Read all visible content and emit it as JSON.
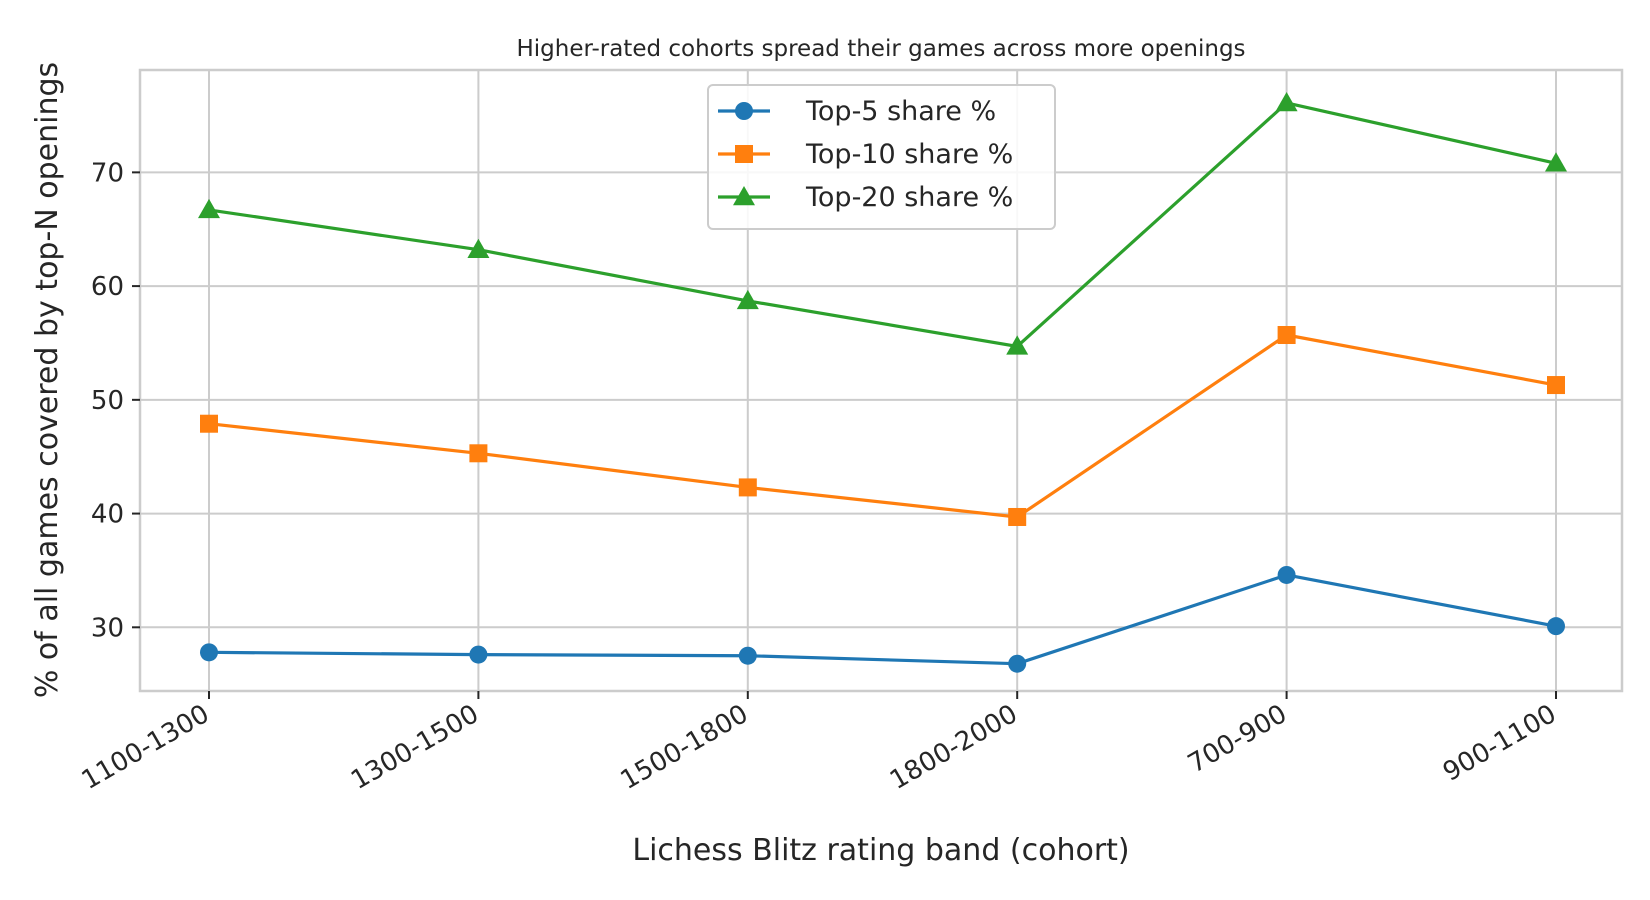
{
  "chart_data": {
    "type": "line",
    "title": "Higher-rated cohorts spread their games across more openings",
    "xlabel": "Lichess Blitz rating band (cohort)",
    "ylabel": "% of all games covered by top-N openings",
    "categories": [
      "1100-1300",
      "1300-1500",
      "1500-1800",
      "1800-2000",
      "700-900",
      "900-1100"
    ],
    "ylim": [
      24.4,
      79.0
    ],
    "yticks": [
      30,
      40,
      50,
      60,
      70
    ],
    "grid": true,
    "legend_position": "top-center",
    "series": [
      {
        "name": "Top-5 share %",
        "color": "#1f77b4",
        "marker": "circle",
        "values": [
          27.8,
          27.6,
          27.5,
          26.8,
          34.6,
          30.1
        ]
      },
      {
        "name": "Top-10 share %",
        "color": "#ff7f0e",
        "marker": "square",
        "values": [
          47.9,
          45.3,
          42.3,
          39.7,
          55.7,
          51.3
        ]
      },
      {
        "name": "Top-20 share %",
        "color": "#2ca02c",
        "marker": "triangle",
        "values": [
          66.7,
          63.2,
          58.7,
          54.7,
          76.1,
          70.8
        ]
      }
    ]
  }
}
